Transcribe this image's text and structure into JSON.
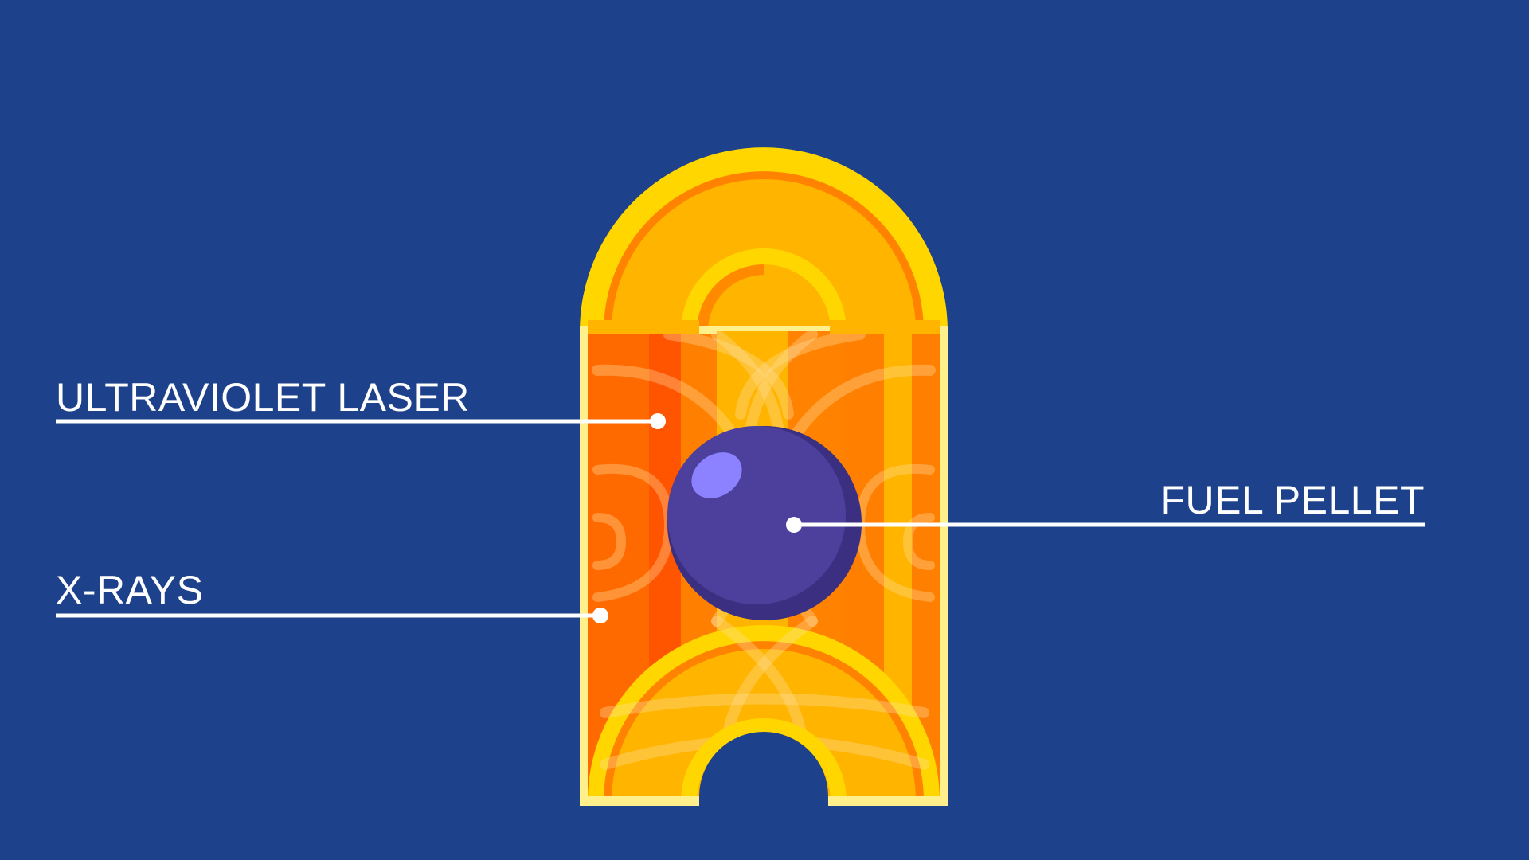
{
  "diagram": {
    "labels": {
      "ultraviolet_laser": "ULTRAVIOLET LASER",
      "x_rays": "X-RAYS",
      "fuel_pellet": "FUEL PELLET"
    }
  },
  "colors": {
    "background": "#1d418a",
    "outer_yellow": "#ffd600",
    "amber": "#ffb400",
    "orange": "#ff7f00",
    "dark_orange": "#ff6a00",
    "red_orange": "#ff5400",
    "cream": "#fff08c",
    "pellet": "#4d3f9c",
    "pellet_shadow": "#3a2f80",
    "pellet_highlight": "#8c82ff",
    "leader_line": "#ffffff"
  }
}
